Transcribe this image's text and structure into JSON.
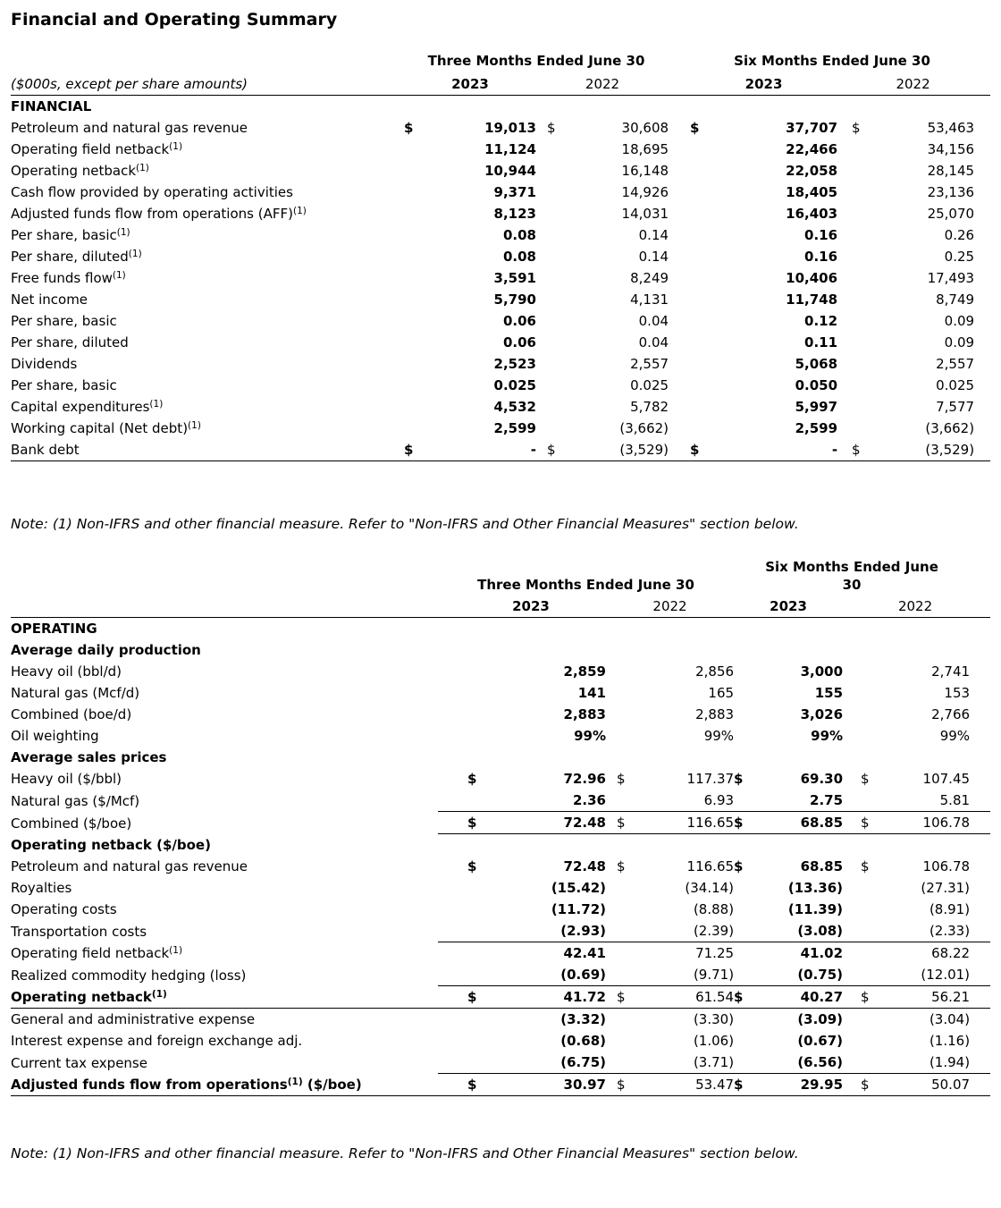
{
  "page": {
    "title": "Financial and Operating Summary"
  },
  "note_top": "Note: (1) Non-IFRS and other financial measure. Refer to \"Non-IFRS and Other Financial Measures\" section below.",
  "note_bottom": "Note: (1) Non-IFRS and other financial measure. Refer to \"Non-IFRS and Other Financial Measures\" section below.",
  "table1": {
    "units_label": "($000s, except per share amounts)",
    "group_headers": [
      "Three Months Ended June 30",
      "Six Months Ended June 30"
    ],
    "years": [
      "2023",
      "2022",
      "2023",
      "2022"
    ],
    "rows": [
      {
        "type": "section",
        "label": "FINANCIAL"
      },
      {
        "label": "Petroleum and natural gas revenue",
        "cells": [
          "$",
          "19,013",
          "$",
          "30,608",
          "$",
          "37,707",
          "$",
          "53,463"
        ]
      },
      {
        "label": "Operating field netback",
        "sup": "(1)",
        "cells": [
          "",
          "11,124",
          "",
          "18,695",
          "",
          "22,466",
          "",
          "34,156"
        ]
      },
      {
        "label": "Operating netback",
        "sup": "(1)",
        "cells": [
          "",
          "10,944",
          "",
          "16,148",
          "",
          "22,058",
          "",
          "28,145"
        ]
      },
      {
        "label": "Cash flow provided by operating activities",
        "cells": [
          "",
          "9,371",
          "",
          "14,926",
          "",
          "18,405",
          "",
          "23,136"
        ]
      },
      {
        "label": "Adjusted funds flow from operations (AFF)",
        "sup": "(1)",
        "cells": [
          "",
          "8,123",
          "",
          "14,031",
          "",
          "16,403",
          "",
          "25,070"
        ]
      },
      {
        "label": "Per share, basic",
        "sup": "(1)",
        "cells": [
          "",
          "0.08",
          "",
          "0.14",
          "",
          "0.16",
          "",
          "0.26"
        ]
      },
      {
        "label": "Per share, diluted",
        "sup": "(1)",
        "cells": [
          "",
          "0.08",
          "",
          "0.14",
          "",
          "0.16",
          "",
          "0.25"
        ]
      },
      {
        "label": "Free funds flow",
        "sup": "(1)",
        "cells": [
          "",
          "3,591",
          "",
          "8,249",
          "",
          "10,406",
          "",
          "17,493"
        ]
      },
      {
        "label": "Net income",
        "cells": [
          "",
          "5,790",
          "",
          "4,131",
          "",
          "11,748",
          "",
          "8,749"
        ]
      },
      {
        "label": "Per share, basic",
        "cells": [
          "",
          "0.06",
          "",
          "0.04",
          "",
          "0.12",
          "",
          "0.09"
        ]
      },
      {
        "label": "Per share, diluted",
        "cells": [
          "",
          "0.06",
          "",
          "0.04",
          "",
          "0.11",
          "",
          "0.09"
        ]
      },
      {
        "label": "Dividends",
        "cells": [
          "",
          "2,523",
          "",
          "2,557",
          "",
          "5,068",
          "",
          "2,557"
        ]
      },
      {
        "label": "Per share, basic",
        "cells": [
          "",
          "0.025",
          "",
          "0.025",
          "",
          "0.050",
          "",
          "0.025"
        ]
      },
      {
        "label": "Capital expenditures",
        "sup": "(1)",
        "cells": [
          "",
          "4,532",
          "",
          "5,782",
          "",
          "5,997",
          "",
          "7,577"
        ]
      },
      {
        "label": "Working capital (Net debt)",
        "sup": "(1)",
        "cells": [
          "",
          "2,599",
          "",
          "(3,662)",
          "",
          "2,599",
          "",
          "(3,662)"
        ]
      },
      {
        "label": "Bank debt",
        "cells": [
          "$",
          "-",
          "$",
          "(3,529)",
          "$",
          "-",
          "$",
          "(3,529)"
        ],
        "border": "full"
      }
    ]
  },
  "table2": {
    "group_headers": [
      "Three Months Ended June 30",
      "Six Months Ended June 30"
    ],
    "years": [
      "2023",
      "2022",
      "2023",
      "2022"
    ],
    "rows": [
      {
        "type": "section",
        "label": "OPERATING"
      },
      {
        "type": "section",
        "label": "Average daily production"
      },
      {
        "label": "Heavy oil (bbl/d)",
        "cells": [
          "",
          "2,859",
          "",
          "2,856",
          "",
          "3,000",
          "",
          "2,741"
        ]
      },
      {
        "label": "Natural gas (Mcf/d)",
        "cells": [
          "",
          "141",
          "",
          "165",
          "",
          "155",
          "",
          "153"
        ]
      },
      {
        "label": "Combined (boe/d)",
        "cells": [
          "",
          "2,883",
          "",
          "2,883",
          "",
          "3,026",
          "",
          "2,766"
        ]
      },
      {
        "label": "Oil weighting",
        "cells": [
          "",
          "99%",
          "",
          "99%",
          "",
          "99%",
          "",
          "99%"
        ]
      },
      {
        "type": "section",
        "label": "Average sales prices"
      },
      {
        "label": "Heavy oil ($/bbl)",
        "cells": [
          "$",
          "72.96",
          "$",
          "117.37",
          "$",
          "69.30",
          "$",
          "107.45"
        ]
      },
      {
        "label": "Natural gas ($/Mcf)",
        "cells": [
          "",
          "2.36",
          "",
          "6.93",
          "",
          "2.75",
          "",
          "5.81"
        ],
        "border": "cols"
      },
      {
        "label": "Combined ($/boe)",
        "cells": [
          "$",
          "72.48",
          "$",
          "116.65",
          "$",
          "68.85",
          "$",
          "106.78"
        ],
        "border": "cols"
      },
      {
        "type": "section",
        "label": "Operating netback ($/boe)"
      },
      {
        "label": "Petroleum and natural gas revenue",
        "cells": [
          "$",
          "72.48",
          "$",
          "116.65",
          "$",
          "68.85",
          "$",
          "106.78"
        ]
      },
      {
        "label": "Royalties",
        "cells": [
          "",
          "(15.42)",
          "",
          "(34.14)",
          "",
          "(13.36)",
          "",
          "(27.31)"
        ]
      },
      {
        "label": "Operating costs",
        "cells": [
          "",
          "(11.72)",
          "",
          "(8.88)",
          "",
          "(11.39)",
          "",
          "(8.91)"
        ]
      },
      {
        "label": "Transportation costs",
        "cells": [
          "",
          "(2.93)",
          "",
          "(2.39)",
          "",
          "(3.08)",
          "",
          "(2.33)"
        ],
        "border": "cols"
      },
      {
        "label": "Operating field netback",
        "sup": "(1)",
        "cells": [
          "",
          "42.41",
          "",
          "71.25",
          "",
          "41.02",
          "",
          "68.22"
        ]
      },
      {
        "label": "Realized commodity hedging (loss)",
        "cells": [
          "",
          "(0.69)",
          "",
          "(9.71)",
          "",
          "(0.75)",
          "",
          "(12.01)"
        ],
        "border": "cols"
      },
      {
        "label": "Operating netback",
        "sup": "(1)",
        "bold": true,
        "cells": [
          "$",
          "41.72",
          "$",
          "61.54",
          "$",
          "40.27",
          "$",
          "56.21"
        ],
        "border": "full"
      },
      {
        "label": "General and administrative expense",
        "cells": [
          "",
          "(3.32)",
          "",
          "(3.30)",
          "",
          "(3.09)",
          "",
          "(3.04)"
        ]
      },
      {
        "label": "Interest expense and foreign exchange adj.",
        "cells": [
          "",
          "(0.68)",
          "",
          "(1.06)",
          "",
          "(0.67)",
          "",
          "(1.16)"
        ]
      },
      {
        "label": "Current tax expense",
        "cells": [
          "",
          "(6.75)",
          "",
          "(3.71)",
          "",
          "(6.56)",
          "",
          "(1.94)"
        ],
        "border": "cols"
      },
      {
        "label": "Adjusted funds flow from operations",
        "sup": "(1)",
        "post": " ($/boe)",
        "bold": true,
        "cells": [
          "$",
          "30.97",
          "$",
          "53.47",
          "$",
          "29.95",
          "$",
          "50.07"
        ],
        "border": "full"
      }
    ]
  }
}
